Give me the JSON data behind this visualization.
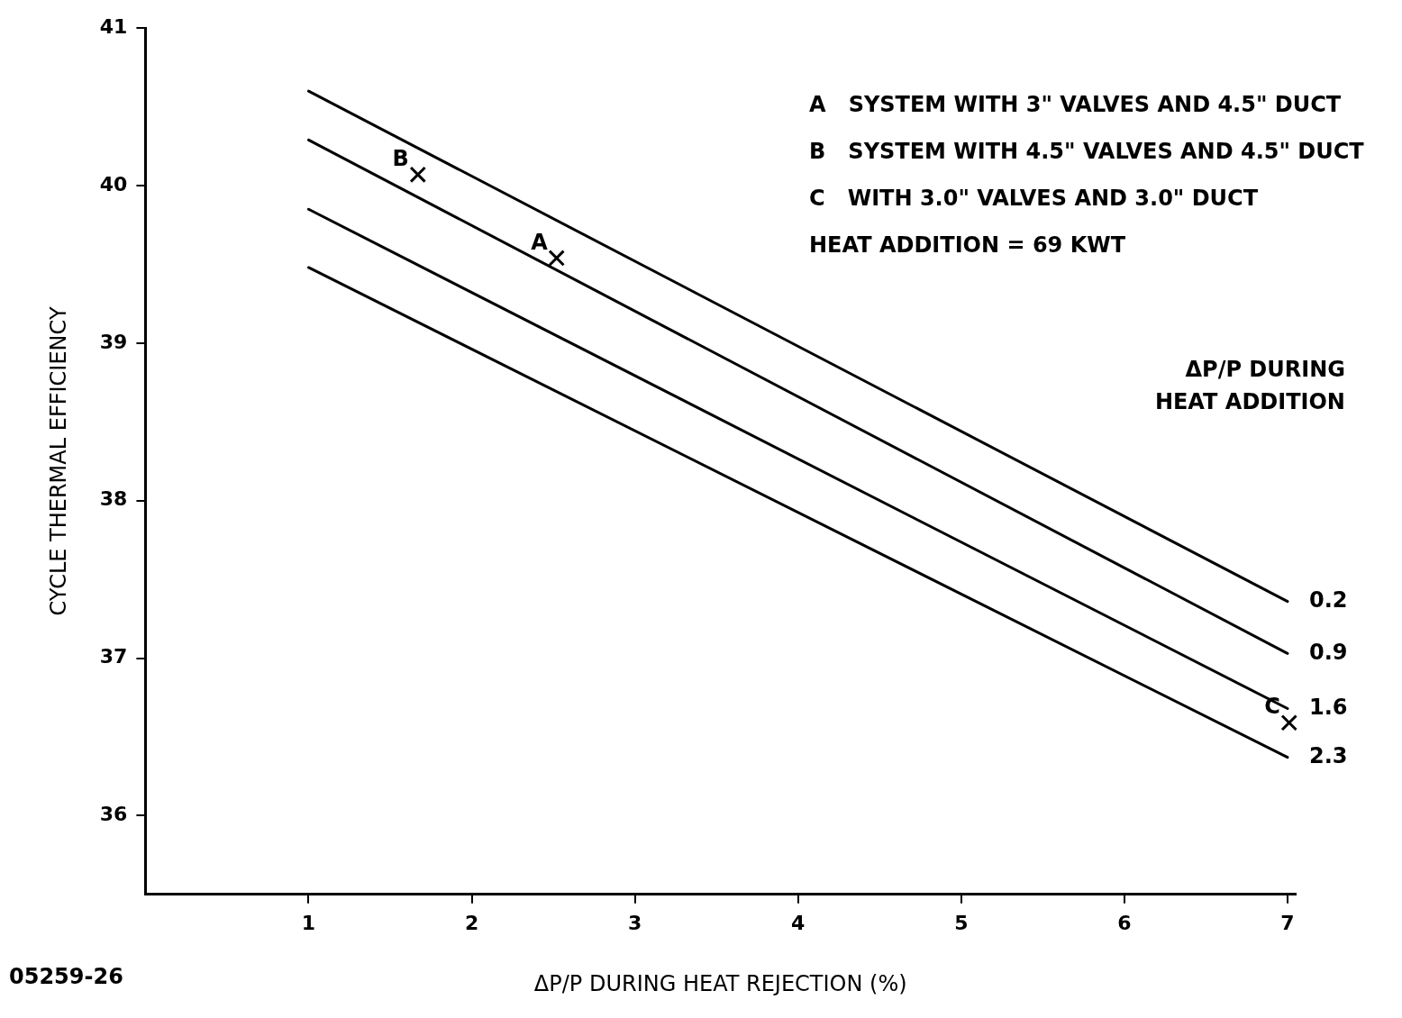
{
  "chart_data": {
    "type": "line",
    "xlabel": "ΔP/P DURING HEAT REJECTION (%)",
    "ylabel": "CYCLE THERMAL EFFICIENCY",
    "legend_title": "ΔP/P DURING HEAT ADDITION",
    "x": [
      1,
      7
    ],
    "xlim": [
      0,
      7.05
    ],
    "xticks": [
      1,
      2,
      3,
      4,
      5,
      6,
      7
    ],
    "ylim": [
      35.5,
      41
    ],
    "yticks": [
      36,
      37,
      38,
      39,
      40,
      41
    ],
    "grid": false,
    "legend": false,
    "marker": "none",
    "line_style": "solid",
    "series": [
      {
        "name": "0.2",
        "color": "#000000",
        "values": [
          40.6,
          37.36
        ]
      },
      {
        "name": "0.9",
        "color": "#000000",
        "values": [
          40.29,
          37.03
        ]
      },
      {
        "name": "1.6",
        "color": "#000000",
        "values": [
          39.85,
          36.68
        ]
      },
      {
        "name": "2.3",
        "color": "#000000",
        "values": [
          39.48,
          36.37
        ]
      },
      {
        "type": "scatter",
        "marker": "cross",
        "color": "#000000",
        "x": [
          1.67,
          2.52,
          7.01
        ],
        "values": [
          40.07,
          39.54,
          36.59
        ]
      }
    ],
    "annotations": [
      "A   SYSTEM WITH 3\" VALVES AND 4.5\" DUCT",
      "B   SYSTEM WITH 4.5\" VALVES AND 4.5\" DUCT",
      "C   WITH 3.0\" VALVES AND 3.0\" DUCT",
      "HEAT ADDITION = 69 KWT",
      {
        "text": "B",
        "x": 1.67,
        "y": 40.07
      },
      {
        "text": "A",
        "x": 2.52,
        "y": 39.54
      },
      {
        "text": "C",
        "x": 7.01,
        "y": 36.59
      },
      "05259-26"
    ]
  }
}
